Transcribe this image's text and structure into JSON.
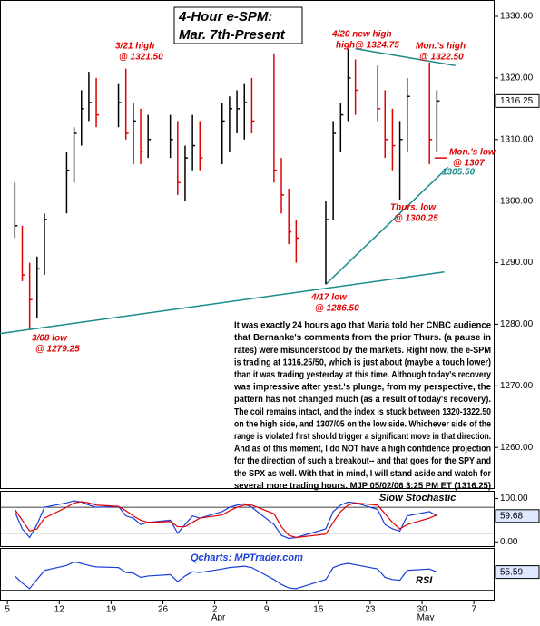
{
  "chart_data": [
    {
      "type": "ohlc",
      "title": [
        "4-Hour e-SPM:",
        "Mar. 7th-Present"
      ],
      "x": [
        6,
        7,
        8,
        9,
        10,
        13,
        14,
        15,
        16,
        17,
        20,
        21,
        22,
        23,
        24,
        27,
        28,
        29,
        30,
        31,
        34,
        35,
        36,
        37,
        38,
        41,
        42,
        43,
        44,
        48,
        49,
        50,
        51,
        52,
        55,
        56,
        57,
        58,
        59,
        62,
        63
      ],
      "high": [
        1303,
        1296,
        1290,
        1291,
        1298,
        1308,
        1312,
        1318,
        1321,
        1320,
        1319,
        1321.5,
        1316,
        1315,
        1314,
        1314,
        1313,
        1309,
        1314,
        1313,
        1316,
        1317,
        1318,
        1319,
        1320,
        1324,
        1307,
        1302,
        1297,
        1300,
        1313,
        1316,
        1324.75,
        1323,
        1322,
        1318,
        1315,
        1313,
        1320,
        1322.5,
        1318
      ],
      "low": [
        1294,
        1287,
        1279.25,
        1281,
        1288,
        1298,
        1303,
        1309,
        1313,
        1312,
        1312,
        1310,
        1306,
        1306,
        1307,
        1307,
        1301,
        1300,
        1305,
        1305,
        1306,
        1308,
        1311,
        1310,
        1311,
        1303,
        1298,
        1293,
        1290,
        1286.5,
        1297,
        1308,
        1313,
        1314,
        1313,
        1307,
        1305,
        1300.25,
        1308,
        1306,
        1308
      ],
      "close": [
        1296,
        1288,
        1284,
        1289,
        1297,
        1305,
        1311,
        1315,
        1316,
        1314,
        1316,
        1311,
        1313,
        1308,
        1310,
        1310,
        1303,
        1307,
        1309,
        1307,
        1313,
        1315,
        1315,
        1316,
        1313,
        1305,
        1301,
        1295,
        1294,
        1297,
        1311,
        1314,
        1320,
        1318,
        1315,
        1310,
        1309,
        1310,
        1317,
        1310,
        1316.25
      ],
      "up_color": "#000000",
      "down_color": "#e00000",
      "xlim": [
        4,
        70.8
      ],
      "xticks": [
        {
          "value": 5,
          "label": "5"
        },
        {
          "value": 12,
          "label": "12"
        },
        {
          "value": 19,
          "label": "19"
        },
        {
          "value": 26,
          "label": "26"
        },
        {
          "value": 33,
          "label": "2"
        },
        {
          "value": 40,
          "label": "9"
        },
        {
          "value": 47,
          "label": "16"
        },
        {
          "value": 54,
          "label": "23"
        },
        {
          "value": 61,
          "label": "30"
        },
        {
          "value": 68,
          "label": "7"
        }
      ],
      "month_labels": [
        {
          "value": 33,
          "label": "Apr"
        },
        {
          "value": 61,
          "label": "May"
        }
      ],
      "ylim": [
        1253.4,
        1332.65
      ],
      "yticks": [
        {
          "value": 1260,
          "label": "1260.00"
        },
        {
          "value": 1270,
          "label": "1270.00"
        },
        {
          "value": 1280,
          "label": "1280.00"
        },
        {
          "value": 1290,
          "label": "1290.00"
        },
        {
          "value": 1300,
          "label": "1300.00"
        },
        {
          "value": 1310,
          "label": "1310.00"
        },
        {
          "value": 1320,
          "label": "1320.00"
        },
        {
          "value": 1330,
          "label": "1330.00"
        }
      ],
      "grid": false,
      "trendlines": [
        {
          "x": [
            4,
            64
          ],
          "y": [
            1278.5,
            1288.5
          ],
          "color": "#1a8c8c"
        },
        {
          "x": [
            48,
            64.5
          ],
          "y": [
            1286.5,
            1305.5
          ],
          "color": "#1a8c8c"
        },
        {
          "x": [
            52,
            65.5
          ],
          "y": [
            1324.75,
            1322
          ],
          "color": "#1a8c8c"
        },
        {
          "x": [
            62.7,
            64.3
          ],
          "y": [
            1307,
            1307
          ],
          "color": "#e00000"
        }
      ],
      "annotations": [
        {
          "text": [
            "3/21 high",
            "@ 1321.50"
          ],
          "color": "#e00000"
        },
        {
          "text": [
            "4/20 new high",
            "high@ 1324.75"
          ],
          "color": "#e00000"
        },
        {
          "text": [
            "Mon.'s high",
            "@ 1322.50"
          ],
          "color": "#e00000"
        },
        {
          "text": [
            "Mon.'s low",
            "@ 1307"
          ],
          "color": "#e00000"
        },
        {
          "text": [
            "1305.50"
          ],
          "color": "#1a8c8c"
        },
        {
          "text": [
            "Thurs. low",
            "@ 1300.25"
          ],
          "color": "#e00000"
        },
        {
          "text": [
            "4/17 low",
            "@ 1286.50"
          ],
          "color": "#e00000"
        },
        {
          "text": [
            "3/08 low",
            "@ 1279.25"
          ],
          "color": "#e00000"
        }
      ],
      "commentary": [
        "It was exactly 24 hours ago that Maria told her CNBC audience",
        "that Bernanke's comments from the prior Thurs. (a pause in",
        "rates) were misunderstood by the markets. Right now, the e-SPM",
        "is trading at 1316.25/50, which is just about (maybe a touch lower)",
        "than it was trading yesterday at this time.  Although today's recovery",
        "was impressive after yest.'s plunge, from my perspective, the",
        "pattern has not changed much (as a result of today's recovery).",
        "The coil remains intact, and the index is stuck between 1320-1322.50",
        "on the high side, and 1307/05 on the low side. Whichever side of the",
        "range is violated first should trigger a significant move in that direction.",
        "And as of this moment, I do NOT have a high confidence projection",
        "for the direction of such a breakout-- and that goes for the SPY and",
        "the SPX as well. With that in mind, I will stand aside and watch for",
        "several more trading hours.  MJP 05/02/06 3:25 PM ET  (1316.25)"
      ]
    },
    {
      "type": "stochastic",
      "title": "Slow Stochastic",
      "series": [
        {
          "color": "#1a3cd8",
          "values": [
            70,
            30,
            10,
            40,
            80,
            90,
            95,
            92,
            85,
            80,
            82,
            60,
            55,
            40,
            45,
            50,
            20,
            40,
            60,
            55,
            70,
            80,
            85,
            88,
            80,
            40,
            15,
            8,
            10,
            30,
            70,
            85,
            92,
            90,
            75,
            40,
            30,
            25,
            60,
            70,
            59.68
          ]
        },
        {
          "color": "#e00000",
          "values": [
            75,
            50,
            25,
            30,
            55,
            80,
            90,
            93,
            90,
            85,
            82,
            72,
            60,
            50,
            45,
            47,
            35,
            35,
            45,
            55,
            62,
            72,
            80,
            85,
            85,
            65,
            35,
            15,
            10,
            18,
            45,
            70,
            85,
            90,
            85,
            65,
            45,
            30,
            40,
            55,
            62
          ]
        }
      ],
      "ylim": [
        -12,
        118
      ],
      "yticks": [
        {
          "value": 100,
          "label": "100.00"
        },
        {
          "value": 0,
          "label": "0.00"
        }
      ],
      "reference_lines": [
        80,
        20
      ]
    },
    {
      "type": "rsi",
      "title": "RSI",
      "source": "Qcharts: MPTrader.com",
      "color": "#1a3cd8",
      "values": [
        50,
        40,
        32,
        45,
        58,
        65,
        70,
        68,
        65,
        63,
        62,
        55,
        54,
        48,
        50,
        52,
        42,
        50,
        56,
        55,
        60,
        62,
        63,
        64,
        62,
        45,
        38,
        33,
        32,
        45,
        62,
        66,
        68,
        66,
        60,
        48,
        45,
        44,
        58,
        60,
        55.59
      ],
      "ylim": [
        15,
        90
      ],
      "reference_lines": [
        70,
        30
      ]
    }
  ]
}
